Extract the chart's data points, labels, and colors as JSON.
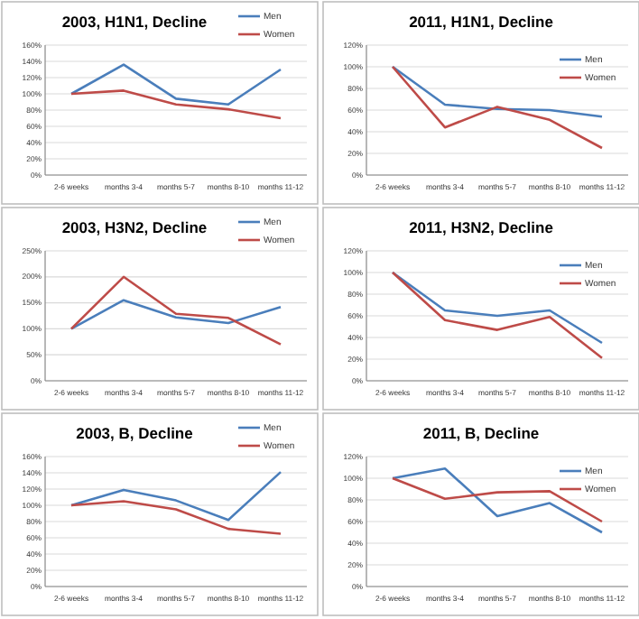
{
  "chart_data": [
    {
      "type": "line",
      "title": "2003, H1N1, Decline",
      "categories": [
        "2-6 weeks",
        "months 3-4",
        "months 5-7",
        "months 8-10",
        "months 11-12"
      ],
      "ylim": [
        0,
        160
      ],
      "yticks": [
        {
          "value": 0,
          "label": "0%"
        },
        {
          "value": 20,
          "label": "20%"
        },
        {
          "value": 40,
          "label": "40%"
        },
        {
          "value": 60,
          "label": "60%"
        },
        {
          "value": 80,
          "label": "80%"
        },
        {
          "value": 100,
          "label": "100%"
        },
        {
          "value": 120,
          "label": "120%"
        },
        {
          "value": 140,
          "label": "140%"
        },
        {
          "value": 160,
          "label": "160%"
        }
      ],
      "grid": "y",
      "legend": "top right",
      "marker": "none",
      "series": [
        {
          "name": "Men",
          "color": "#4a7ebb",
          "values": [
            100,
            136,
            94,
            87,
            130
          ]
        },
        {
          "name": "Women",
          "color": "#be4b48",
          "values": [
            100,
            104,
            87,
            81,
            70
          ]
        }
      ]
    },
    {
      "type": "line",
      "title": "2011, H1N1, Decline",
      "categories": [
        "2-6 weeks",
        "months 3-4",
        "months 5-7",
        "months 8-10",
        "months 11-12"
      ],
      "ylim": [
        0,
        120
      ],
      "yticks": [
        {
          "value": 0,
          "label": "0%"
        },
        {
          "value": 20,
          "label": "20%"
        },
        {
          "value": 40,
          "label": "40%"
        },
        {
          "value": 60,
          "label": "60%"
        },
        {
          "value": 80,
          "label": "80%"
        },
        {
          "value": 100,
          "label": "100%"
        },
        {
          "value": 120,
          "label": "120%"
        }
      ],
      "grid": "y",
      "legend": "top right",
      "marker": "none",
      "series": [
        {
          "name": "Men",
          "color": "#4a7ebb",
          "values": [
            100,
            65,
            61,
            60,
            54
          ]
        },
        {
          "name": "Women",
          "color": "#be4b48",
          "values": [
            100,
            44,
            63,
            51,
            25
          ]
        }
      ]
    },
    {
      "type": "line",
      "title": "2003, H3N2, Decline",
      "categories": [
        "2-6 weeks",
        "months 3-4",
        "months 5-7",
        "months 8-10",
        "months 11-12"
      ],
      "ylim": [
        0,
        250
      ],
      "yticks": [
        {
          "value": 0,
          "label": "0%"
        },
        {
          "value": 50,
          "label": "50%"
        },
        {
          "value": 100,
          "label": "100%"
        },
        {
          "value": 150,
          "label": "150%"
        },
        {
          "value": 200,
          "label": "200%"
        },
        {
          "value": 250,
          "label": "250%"
        }
      ],
      "grid": "y",
      "legend": "top right",
      "marker": "none",
      "series": [
        {
          "name": "Men",
          "color": "#4a7ebb",
          "values": [
            100,
            155,
            122,
            111,
            142
          ]
        },
        {
          "name": "Women",
          "color": "#be4b48",
          "values": [
            100,
            200,
            129,
            121,
            70
          ]
        }
      ]
    },
    {
      "type": "line",
      "title": "2011, H3N2, Decline",
      "categories": [
        "2-6 weeks",
        "months 3-4",
        "months 5-7",
        "months 8-10",
        "months 11-12"
      ],
      "ylim": [
        0,
        120
      ],
      "yticks": [
        {
          "value": 0,
          "label": "0%"
        },
        {
          "value": 20,
          "label": "20%"
        },
        {
          "value": 40,
          "label": "40%"
        },
        {
          "value": 60,
          "label": "60%"
        },
        {
          "value": 80,
          "label": "80%"
        },
        {
          "value": 100,
          "label": "100%"
        },
        {
          "value": 120,
          "label": "120%"
        }
      ],
      "grid": "y",
      "legend": "top right",
      "marker": "none",
      "series": [
        {
          "name": "Men",
          "color": "#4a7ebb",
          "values": [
            100,
            65,
            60,
            65,
            35
          ]
        },
        {
          "name": "Women",
          "color": "#be4b48",
          "values": [
            100,
            56,
            47,
            59,
            21
          ]
        }
      ]
    },
    {
      "type": "line",
      "title": "2003, B, Decline",
      "categories": [
        "2-6 weeks",
        "months 3-4",
        "months 5-7",
        "months 8-10",
        "months 11-12"
      ],
      "ylim": [
        0,
        160
      ],
      "yticks": [
        {
          "value": 0,
          "label": "0%"
        },
        {
          "value": 20,
          "label": "20%"
        },
        {
          "value": 40,
          "label": "40%"
        },
        {
          "value": 60,
          "label": "60%"
        },
        {
          "value": 80,
          "label": "80%"
        },
        {
          "value": 100,
          "label": "100%"
        },
        {
          "value": 120,
          "label": "120%"
        },
        {
          "value": 140,
          "label": "140%"
        },
        {
          "value": 160,
          "label": "160%"
        }
      ],
      "grid": "y",
      "legend": "top right",
      "marker": "none",
      "series": [
        {
          "name": "Men",
          "color": "#4a7ebb",
          "values": [
            100,
            119,
            106,
            82,
            141
          ]
        },
        {
          "name": "Women",
          "color": "#be4b48",
          "values": [
            100,
            105,
            95,
            71,
            65
          ]
        }
      ]
    },
    {
      "type": "line",
      "title": "2011, B, Decline",
      "categories": [
        "2-6 weeks",
        "months 3-4",
        "months 5-7",
        "months 8-10",
        "months 11-12"
      ],
      "ylim": [
        0,
        120
      ],
      "yticks": [
        {
          "value": 0,
          "label": "0%"
        },
        {
          "value": 20,
          "label": "20%"
        },
        {
          "value": 40,
          "label": "40%"
        },
        {
          "value": 60,
          "label": "60%"
        },
        {
          "value": 80,
          "label": "80%"
        },
        {
          "value": 100,
          "label": "100%"
        },
        {
          "value": 120,
          "label": "120%"
        }
      ],
      "grid": "y",
      "legend": "top right",
      "marker": "none",
      "series": [
        {
          "name": "Men",
          "color": "#4a7ebb",
          "values": [
            100,
            109,
            65,
            77,
            50
          ]
        },
        {
          "name": "Women",
          "color": "#be4b48",
          "values": [
            100,
            81,
            87,
            88,
            60
          ]
        }
      ]
    }
  ]
}
